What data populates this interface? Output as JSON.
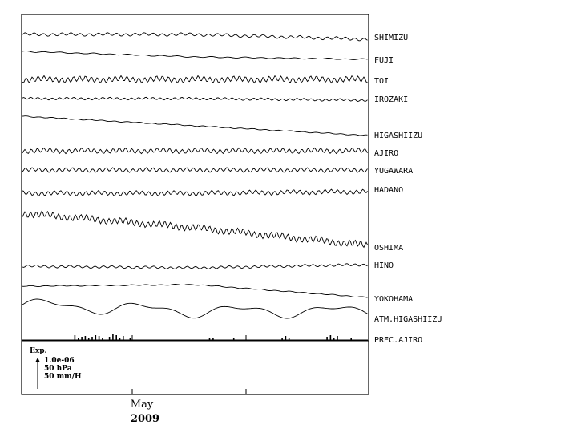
{
  "chart_data": {
    "type": "line",
    "title": "",
    "xlabel": "",
    "ylabel": "",
    "x_tick_labels": [
      "May"
    ],
    "x_year_label": "2009",
    "series": [
      {
        "name": "SHIMIZU",
        "start": 0.0,
        "mid": 0.0,
        "step_at": 0.53,
        "step": 6,
        "end": 6,
        "ripple": 1.6
      },
      {
        "name": "FUJI",
        "start": 0.0,
        "mid": 7,
        "step_at": 0.54,
        "step": 3,
        "end": 10,
        "ripple": 0.6
      },
      {
        "name": "TOI",
        "start": 0.0,
        "mid": 0.0,
        "step_at": null,
        "step": 0,
        "end": 0,
        "ripple": 3.2
      },
      {
        "name": "IROZAKI",
        "start": 0.0,
        "mid": 0.0,
        "step_at": null,
        "step": 0,
        "end": 2,
        "ripple": 1.2
      },
      {
        "name": "HIGASHIIZU",
        "start": 0.0,
        "mid": 12,
        "step_at": null,
        "step": 0,
        "end": 24,
        "ripple": 0.5
      },
      {
        "name": "AJIRO",
        "start": 0.0,
        "mid": 0.0,
        "step_at": null,
        "step": 0,
        "end": 0,
        "ripple": 2.6
      },
      {
        "name": "YUGAWARA",
        "start": 0.0,
        "mid": 0.0,
        "step_at": null,
        "step": 0,
        "end": 0,
        "ripple": 2.2
      },
      {
        "name": "HADANO",
        "start": 0.0,
        "mid": 0.0,
        "step_at": null,
        "step": 0,
        "end": -2,
        "ripple": 2.4
      },
      {
        "name": "OSHIMA",
        "start": 0.0,
        "mid": 18,
        "step_at": null,
        "step": 0,
        "end": 40,
        "ripple": 3.6
      },
      {
        "name": "HINO",
        "start": 0.0,
        "mid": 2,
        "step_at": null,
        "step": 0,
        "end": -2,
        "ripple": 1.3
      },
      {
        "name": "YOKOHAMA",
        "start": 0.0,
        "mid": -2,
        "step_at": null,
        "step": 0,
        "end": 14,
        "ripple": 0.5
      },
      {
        "name": "ATM.HIGASHIIZU",
        "start": 0.0,
        "mid": 8,
        "step_at": null,
        "step": 0,
        "end": 8,
        "ripple": 0.8
      },
      {
        "name": "PREC.AJIRO",
        "start": 0.0,
        "mid": 0.0,
        "step_at": null,
        "step": 0,
        "end": 0,
        "ripple": 0
      }
    ],
    "precip_events": [
      [
        0.15,
        6
      ],
      [
        0.16,
        3
      ],
      [
        0.17,
        4
      ],
      [
        0.18,
        5
      ],
      [
        0.19,
        3
      ],
      [
        0.2,
        4
      ],
      [
        0.21,
        6
      ],
      [
        0.22,
        5
      ],
      [
        0.23,
        3
      ],
      [
        0.25,
        4
      ],
      [
        0.26,
        7
      ],
      [
        0.27,
        6
      ],
      [
        0.28,
        3
      ],
      [
        0.29,
        5
      ],
      [
        0.31,
        2
      ],
      [
        0.54,
        2
      ],
      [
        0.55,
        3
      ],
      [
        0.61,
        2
      ],
      [
        0.75,
        3
      ],
      [
        0.76,
        5
      ],
      [
        0.77,
        3
      ],
      [
        0.88,
        4
      ],
      [
        0.89,
        6
      ],
      [
        0.9,
        3
      ],
      [
        0.91,
        5
      ],
      [
        0.95,
        3
      ]
    ],
    "scale_legend": {
      "title": "Exp.",
      "lines": [
        "1.0e-06",
        "50 hPa",
        "50 mm/H"
      ]
    },
    "grid": false
  }
}
